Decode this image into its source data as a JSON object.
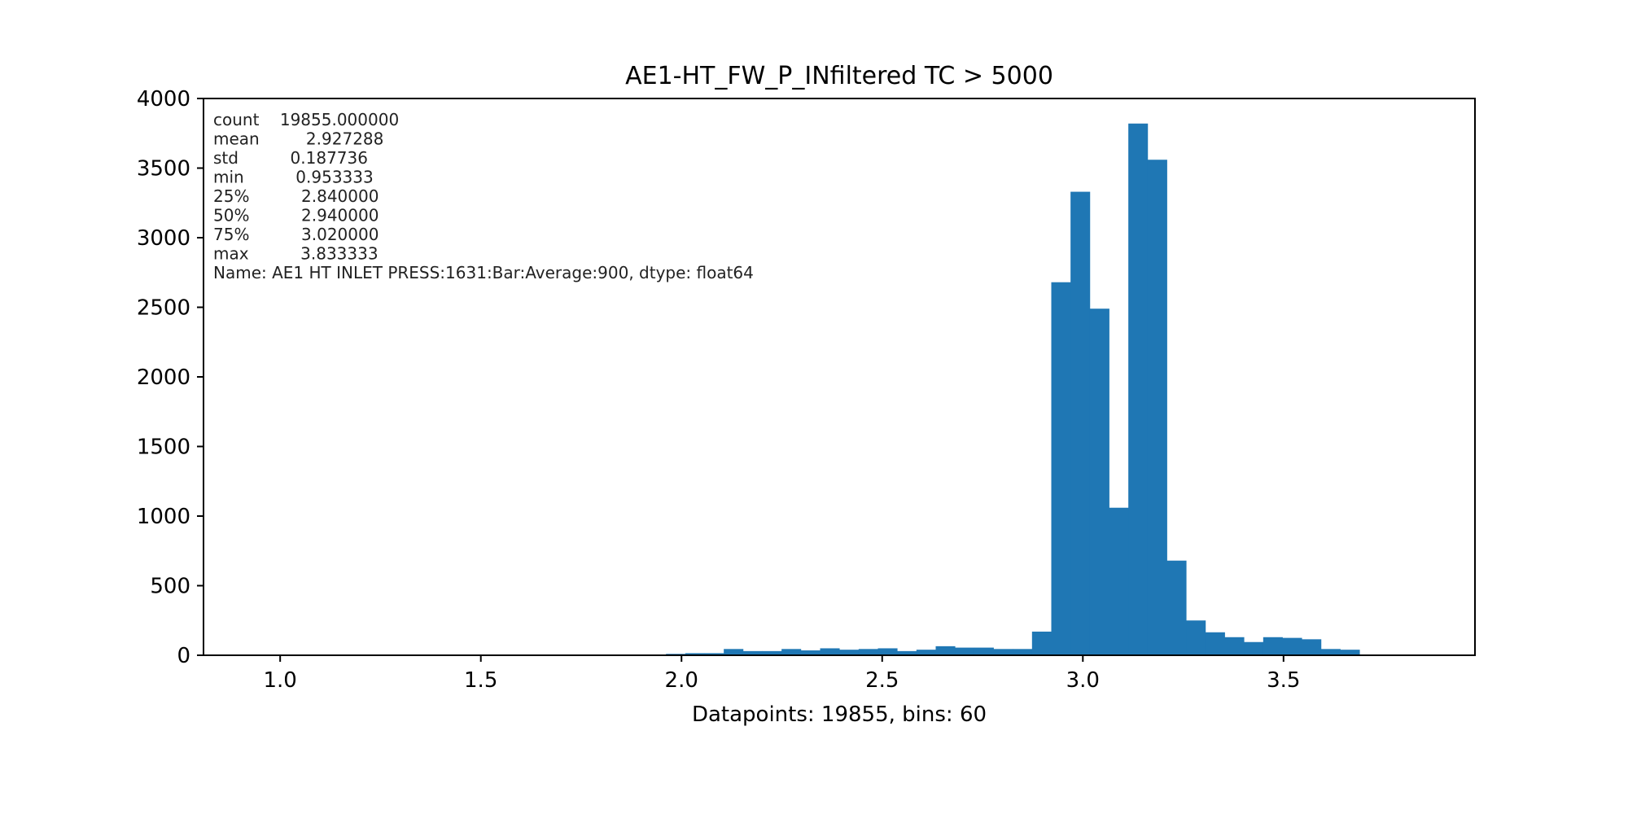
{
  "chart_data": {
    "type": "bar",
    "title": "AE1-HT_FW_P_INfiltered TC > 5000",
    "xlabel": "Datapoints: 19855, bins: 60",
    "ylabel": "",
    "xlim": [
      0.809,
      3.977
    ],
    "ylim": [
      0,
      4000
    ],
    "x_ticks": [
      "1.0",
      "1.5",
      "2.0",
      "2.5",
      "3.0",
      "3.5"
    ],
    "y_ticks": [
      "0",
      "500",
      "1000",
      "1500",
      "2000",
      "2500",
      "3000",
      "3500",
      "4000"
    ],
    "bin_start": 0.953333,
    "bin_width": 0.048,
    "values": [
      1,
      0,
      0,
      0,
      0,
      0,
      0,
      0,
      0,
      0,
      0,
      0,
      0,
      0,
      0,
      0,
      0,
      0,
      0,
      0,
      5,
      10,
      15,
      15,
      45,
      30,
      30,
      45,
      35,
      50,
      40,
      45,
      50,
      30,
      40,
      65,
      55,
      55,
      45,
      45,
      170,
      2680,
      3330,
      2490,
      1060,
      3820,
      3560,
      680,
      250,
      165,
      130,
      95,
      130,
      125,
      115,
      45,
      40,
      5,
      2,
      5
    ],
    "bar_color": "#1f77b4",
    "grid": false,
    "legend": "none",
    "stats_lines": [
      "count    19855.000000",
      "mean         2.927288",
      "std          0.187736",
      "min          0.953333",
      "25%          2.840000",
      "50%          2.940000",
      "75%          3.020000",
      "max          3.833333",
      "Name: AE1 HT INLET PRESS:1631:Bar:Average:900, dtype: float64"
    ]
  }
}
